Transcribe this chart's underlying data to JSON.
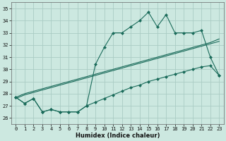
{
  "xlabel": "Humidex (Indice chaleur)",
  "xlim": [
    -0.5,
    23.5
  ],
  "ylim": [
    25.5,
    35.5
  ],
  "yticks": [
    26,
    27,
    28,
    29,
    30,
    31,
    32,
    33,
    34,
    35
  ],
  "xticks": [
    0,
    1,
    2,
    3,
    4,
    5,
    6,
    7,
    8,
    9,
    10,
    11,
    12,
    13,
    14,
    15,
    16,
    17,
    18,
    19,
    20,
    21,
    22,
    23
  ],
  "background_color": "#cce8e0",
  "grid_color": "#aaccc4",
  "line_color": "#1a6b5a",
  "hours": [
    0,
    1,
    2,
    3,
    4,
    5,
    6,
    7,
    8,
    9,
    10,
    11,
    12,
    13,
    14,
    15,
    16,
    17,
    18,
    19,
    20,
    21,
    22,
    23
  ],
  "line_main": [
    27.7,
    27.2,
    27.6,
    26.5,
    26.7,
    26.5,
    26.5,
    26.5,
    27.0,
    30.4,
    31.8,
    33.0,
    33.0,
    33.5,
    34.0,
    34.7,
    33.5,
    34.5,
    33.0,
    33.0,
    33.0,
    33.2,
    31.0,
    29.5
  ],
  "line_reg1": [
    27.6,
    27.9,
    28.1,
    28.3,
    28.5,
    28.7,
    28.9,
    29.1,
    29.3,
    29.5,
    29.7,
    29.9,
    30.1,
    30.3,
    30.5,
    30.7,
    30.9,
    31.1,
    31.3,
    31.5,
    31.7,
    31.9,
    32.1,
    32.3
  ],
  "line_reg2": [
    27.7,
    28.0,
    28.2,
    28.4,
    28.6,
    28.8,
    29.0,
    29.2,
    29.4,
    29.6,
    29.8,
    30.0,
    30.2,
    30.4,
    30.6,
    30.8,
    31.0,
    31.2,
    31.4,
    31.6,
    31.8,
    32.0,
    32.2,
    32.5
  ],
  "line_low": [
    27.7,
    27.2,
    27.6,
    26.5,
    26.7,
    26.5,
    26.5,
    26.5,
    27.0,
    27.3,
    27.6,
    27.9,
    28.2,
    28.5,
    28.7,
    29.0,
    29.2,
    29.4,
    29.6,
    29.8,
    30.0,
    30.2,
    30.3,
    29.5
  ]
}
